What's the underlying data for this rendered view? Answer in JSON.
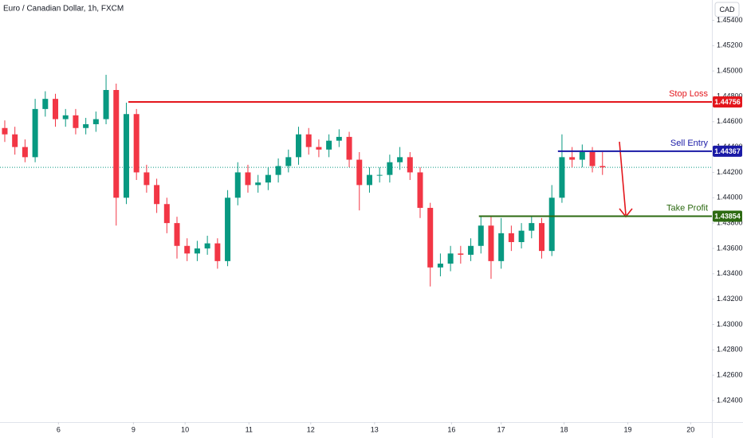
{
  "chart_data": {
    "type": "candlestick",
    "title": "Euro / Canadian Dollar, 1h, FXCM",
    "currency": "CAD",
    "up_color": "#089981",
    "down_color": "#f23645",
    "open": [
      1.4455,
      1.445,
      1.444,
      1.4432,
      1.447,
      1.4478,
      1.4462,
      1.4465,
      1.4455,
      1.4458,
      1.4462,
      1.4485,
      1.44,
      1.4466,
      1.442,
      1.441,
      1.4395,
      1.438,
      1.4362,
      1.4356,
      1.436,
      1.4364,
      1.435,
      1.44,
      1.442,
      1.441,
      1.4412,
      1.4418,
      1.4425,
      1.4432,
      1.445,
      1.444,
      1.4438,
      1.4445,
      1.4448,
      1.443,
      1.441,
      1.4418,
      1.4418,
      1.4428,
      1.4432,
      1.442,
      1.4392,
      1.4345,
      1.4348,
      1.4356,
      1.4355,
      1.4362,
      1.4378,
      1.435,
      1.4372,
      1.4365,
      1.4374,
      1.438,
      1.4358,
      1.44,
      1.4432,
      1.443,
      1.4436,
      1.4425
    ],
    "high": [
      1.4461,
      1.4456,
      1.4446,
      1.4478,
      1.4484,
      1.4482,
      1.447,
      1.447,
      1.4463,
      1.4468,
      1.4497,
      1.449,
      1.4475,
      1.447,
      1.4426,
      1.4415,
      1.44,
      1.4385,
      1.4368,
      1.4366,
      1.437,
      1.4368,
      1.4406,
      1.4428,
      1.4426,
      1.4418,
      1.4424,
      1.4431,
      1.4438,
      1.4456,
      1.4455,
      1.4446,
      1.445,
      1.4454,
      1.4452,
      1.4436,
      1.4424,
      1.4424,
      1.4434,
      1.444,
      1.4436,
      1.4424,
      1.4396,
      1.4356,
      1.4362,
      1.4362,
      1.4368,
      1.4386,
      1.4386,
      1.4384,
      1.4378,
      1.438,
      1.4386,
      1.4384,
      1.441,
      1.445,
      1.444,
      1.4442,
      1.444,
      1.4436
    ],
    "low": [
      1.4444,
      1.4434,
      1.4428,
      1.4428,
      1.4464,
      1.4456,
      1.4456,
      1.445,
      1.445,
      1.4452,
      1.4458,
      1.4378,
      1.4395,
      1.4414,
      1.4404,
      1.4388,
      1.4372,
      1.4352,
      1.435,
      1.435,
      1.4355,
      1.4344,
      1.4346,
      1.4394,
      1.4404,
      1.4404,
      1.4406,
      1.4412,
      1.442,
      1.4426,
      1.4434,
      1.4432,
      1.4432,
      1.444,
      1.4424,
      1.439,
      1.4404,
      1.4412,
      1.4412,
      1.4422,
      1.4414,
      1.4384,
      1.433,
      1.4338,
      1.4342,
      1.4348,
      1.435,
      1.4356,
      1.4336,
      1.4344,
      1.4358,
      1.436,
      1.4368,
      1.4352,
      1.4354,
      1.4396,
      1.4424,
      1.4424,
      1.442,
      1.4418
    ],
    "close": [
      1.445,
      1.444,
      1.4432,
      1.447,
      1.4478,
      1.4462,
      1.4465,
      1.4455,
      1.4458,
      1.4462,
      1.4485,
      1.44,
      1.4466,
      1.442,
      1.441,
      1.4395,
      1.438,
      1.4362,
      1.4356,
      1.436,
      1.4364,
      1.435,
      1.44,
      1.442,
      1.441,
      1.4412,
      1.4418,
      1.4425,
      1.4432,
      1.445,
      1.444,
      1.4438,
      1.4445,
      1.4448,
      1.443,
      1.441,
      1.4418,
      1.4418,
      1.4428,
      1.4432,
      1.442,
      1.4392,
      1.4345,
      1.4348,
      1.4356,
      1.4355,
      1.4362,
      1.4378,
      1.435,
      1.4372,
      1.4365,
      1.4374,
      1.438,
      1.4358,
      1.44,
      1.4432,
      1.443,
      1.4436,
      1.4425,
      1.4424
    ],
    "xlim": [
      -0.47,
      69.8
    ],
    "xticks": [
      {
        "value": 5.3,
        "label": "6"
      },
      {
        "value": 12.7,
        "label": "9"
      },
      {
        "value": 17.8,
        "label": "10"
      },
      {
        "value": 24.1,
        "label": "11"
      },
      {
        "value": 30.2,
        "label": "12"
      },
      {
        "value": 36.5,
        "label": "13"
      },
      {
        "value": 44.1,
        "label": "16"
      },
      {
        "value": 49.0,
        "label": "17"
      },
      {
        "value": 55.2,
        "label": "18"
      },
      {
        "value": 61.5,
        "label": "19"
      },
      {
        "value": 67.7,
        "label": "20"
      }
    ],
    "ylim": [
      1.4223,
      1.4556
    ],
    "yticks": [
      {
        "value": 1.424,
        "label": "1.42400"
      },
      {
        "value": 1.426,
        "label": "1.42600"
      },
      {
        "value": 1.428,
        "label": "1.42800"
      },
      {
        "value": 1.43,
        "label": "1.43000"
      },
      {
        "value": 1.432,
        "label": "1.43200"
      },
      {
        "value": 1.434,
        "label": "1.43400"
      },
      {
        "value": 1.436,
        "label": "1.43600"
      },
      {
        "value": 1.438,
        "label": "1.43800"
      },
      {
        "value": 1.44,
        "label": "1.44000"
      },
      {
        "value": 1.442,
        "label": "1.44200"
      },
      {
        "value": 1.444,
        "label": "1.44400"
      },
      {
        "value": 1.446,
        "label": "1.44600"
      },
      {
        "value": 1.448,
        "label": "1.44800"
      },
      {
        "value": 1.45,
        "label": "1.45000"
      },
      {
        "value": 1.452,
        "label": "1.45200"
      },
      {
        "value": 1.454,
        "label": "1.45400"
      }
    ],
    "levels": [
      {
        "name": "Stop Loss",
        "value": 1.44756,
        "label": "1.44756",
        "color": "#e3161c"
      },
      {
        "name": "Sell Entry",
        "value": 1.44367,
        "label": "1.44367",
        "color": "#1a1aa6"
      },
      {
        "name": "Take Profit",
        "value": 1.43854,
        "label": "1.43854",
        "color": "#2d6a12"
      }
    ]
  }
}
